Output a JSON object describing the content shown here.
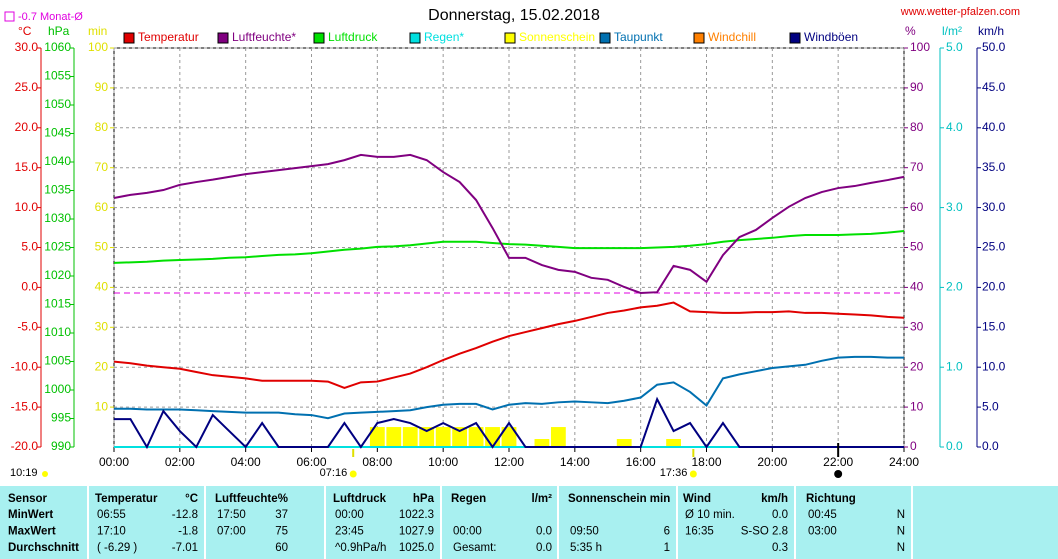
{
  "chart_data": {
    "type": "line",
    "title": "Donnerstag, 15.02.2018",
    "source": "www.wetter-pfalzen.com",
    "monthly_avg": {
      "value": -0.7,
      "label": "Monat-Ø",
      "color": "#e000e0",
      "axis": 0
    },
    "day_length": "10:19",
    "sun_markers": [
      {
        "label": "07:16",
        "x": 7.267
      },
      {
        "label": "17:36",
        "x": 17.6
      }
    ],
    "moon_x": 22,
    "grid": true,
    "xlim": [
      0,
      24
    ],
    "xticks": [
      {
        "value": 0,
        "label": "00:00"
      },
      {
        "value": 2,
        "label": "02:00"
      },
      {
        "value": 4,
        "label": "04:00"
      },
      {
        "value": 6,
        "label": "06:00"
      },
      {
        "value": 8,
        "label": "08:00"
      },
      {
        "value": 10,
        "label": "10:00"
      },
      {
        "value": 12,
        "label": "12:00"
      },
      {
        "value": 14,
        "label": "14:00"
      },
      {
        "value": 16,
        "label": "16:00"
      },
      {
        "value": 18,
        "label": "18:00"
      },
      {
        "value": 20,
        "label": "20:00"
      },
      {
        "value": 22,
        "label": "22:00"
      },
      {
        "value": 24,
        "label": "24:00"
      }
    ],
    "y_axes": [
      {
        "unit": "°C",
        "color": "#e00000",
        "lim": [
          -20,
          30
        ],
        "ticks": [
          {
            "value": 30,
            "label": "30.0"
          },
          {
            "value": 25,
            "label": "25.0"
          },
          {
            "value": 20,
            "label": "20.0"
          },
          {
            "value": 15,
            "label": "15.0"
          },
          {
            "value": 10,
            "label": "10.0"
          },
          {
            "value": 5,
            "label": "5.0"
          },
          {
            "value": 0,
            "label": "0.0"
          },
          {
            "value": -5,
            "label": "-5.0"
          },
          {
            "value": -10,
            "label": "-10.0"
          },
          {
            "value": -15,
            "label": "-15.0"
          },
          {
            "value": -20,
            "label": "-20.0"
          }
        ]
      },
      {
        "unit": "hPa",
        "color": "#00c000",
        "lim": [
          990,
          1060
        ],
        "ticks": [
          1060,
          1055,
          1050,
          1045,
          1040,
          1035,
          1030,
          1025,
          1020,
          1015,
          1010,
          1005,
          1000,
          995,
          990
        ]
      },
      {
        "unit": "min",
        "color": "#e0e000",
        "lim": [
          0,
          100
        ],
        "ticks": [
          100,
          90,
          80,
          70,
          60,
          50,
          40,
          30,
          20,
          10
        ]
      },
      {
        "unit": "%",
        "color": "#800080",
        "lim": [
          0,
          100
        ],
        "ticks": [
          100,
          90,
          80,
          70,
          60,
          50,
          40,
          30,
          20,
          10,
          0
        ]
      },
      {
        "unit": "l/m²",
        "color": "#00c0c0",
        "lim": [
          0,
          5
        ],
        "ticks": [
          {
            "value": 5,
            "label": "5.0"
          },
          {
            "value": 4,
            "label": "4.0"
          },
          {
            "value": 3,
            "label": "3.0"
          },
          {
            "value": 2,
            "label": "2.0"
          },
          {
            "value": 1,
            "label": "1.0"
          },
          {
            "value": 0,
            "label": "0.0"
          }
        ]
      },
      {
        "unit": "km/h",
        "color": "#000080",
        "lim": [
          0,
          50
        ],
        "ticks": [
          {
            "value": 50,
            "label": "50.0"
          },
          {
            "value": 45,
            "label": "45.0"
          },
          {
            "value": 40,
            "label": "40.0"
          },
          {
            "value": 35,
            "label": "35.0"
          },
          {
            "value": 30,
            "label": "30.0"
          },
          {
            "value": 25,
            "label": "25.0"
          },
          {
            "value": 20,
            "label": "20.0"
          },
          {
            "value": 15,
            "label": "15.0"
          },
          {
            "value": 10,
            "label": "10.0"
          },
          {
            "value": 5,
            "label": "5.0"
          },
          {
            "value": 0,
            "label": "0.0"
          }
        ]
      }
    ],
    "x": [
      0,
      0.5,
      1,
      1.5,
      2,
      2.5,
      3,
      3.5,
      4,
      4.5,
      5,
      5.5,
      6,
      6.5,
      7,
      7.5,
      8,
      8.5,
      9,
      9.5,
      10,
      10.5,
      11,
      11.5,
      12,
      12.5,
      13,
      13.5,
      14,
      14.5,
      15,
      15.5,
      16,
      16.5,
      17,
      17.5,
      18,
      18.5,
      19,
      19.5,
      20,
      20.5,
      21,
      21.5,
      22,
      22.5,
      23,
      23.5,
      24
    ],
    "series": [
      {
        "name": "Temperatur",
        "color": "#e00000",
        "axis": 0,
        "type": "line",
        "values": [
          -9.3,
          -9.5,
          -9.8,
          -10.0,
          -10.2,
          -10.6,
          -11.0,
          -11.2,
          -11.4,
          -11.7,
          -11.7,
          -11.7,
          -11.7,
          -11.8,
          -12.6,
          -11.9,
          -11.8,
          -11.3,
          -10.8,
          -10.0,
          -9.1,
          -8.3,
          -7.6,
          -6.8,
          -6.1,
          -5.6,
          -5.1,
          -4.6,
          -4.2,
          -3.7,
          -3.2,
          -2.9,
          -2.5,
          -2.3,
          -1.9,
          -3.0,
          -3.1,
          -3.2,
          -3.2,
          -3.1,
          -3.1,
          -3.0,
          -3.2,
          -3.2,
          -3.3,
          -3.4,
          -3.5,
          -3.7,
          -3.8
        ]
      },
      {
        "name": "Luftfeuchte*",
        "color": "#800080",
        "axis": 3,
        "type": "line",
        "values": [
          62.4,
          63.2,
          63.7,
          64.4,
          65.7,
          66.4,
          67.0,
          67.7,
          68.4,
          68.9,
          69.4,
          69.9,
          70.4,
          70.9,
          71.9,
          73.2,
          72.7,
          72.7,
          73.2,
          71.9,
          68.9,
          66.4,
          61.9,
          54.9,
          47.4,
          47.4,
          45.6,
          44.4,
          43.9,
          42.4,
          41.9,
          40.1,
          38.6,
          38.8,
          45.4,
          44.4,
          41.4,
          48.1,
          52.6,
          54.4,
          57.4,
          60.2,
          62.4,
          63.9,
          64.9,
          65.4,
          66.2,
          66.9,
          67.7
        ]
      },
      {
        "name": "Luftdruck",
        "color": "#00e000",
        "axis": 1,
        "type": "line",
        "values": [
          1022.3,
          1022.4,
          1022.5,
          1022.7,
          1022.8,
          1022.9,
          1023.0,
          1023.2,
          1023.3,
          1023.5,
          1023.7,
          1023.8,
          1024.0,
          1024.3,
          1024.6,
          1024.8,
          1025.1,
          1025.2,
          1025.4,
          1025.7,
          1026.0,
          1026.0,
          1026.0,
          1025.8,
          1025.6,
          1025.5,
          1025.3,
          1025.1,
          1024.9,
          1024.9,
          1024.9,
          1024.9,
          1024.9,
          1025.0,
          1025.1,
          1025.3,
          1025.6,
          1026.0,
          1026.3,
          1026.5,
          1026.7,
          1027.0,
          1027.2,
          1027.2,
          1027.2,
          1027.3,
          1027.4,
          1027.6,
          1027.9
        ]
      },
      {
        "name": "Regen*",
        "color": "#00e0e0",
        "axis": 4,
        "type": "line",
        "values": [
          0,
          0,
          0,
          0,
          0,
          0,
          0,
          0,
          0,
          0,
          0,
          0,
          0,
          0,
          0,
          0,
          0,
          0,
          0,
          0,
          0,
          0,
          0,
          0,
          0,
          0,
          0,
          0,
          0,
          0,
          0,
          0,
          0,
          0,
          0,
          0,
          0,
          0,
          0,
          0,
          0,
          0,
          0,
          0,
          0,
          0,
          0,
          0,
          0
        ]
      },
      {
        "name": "Sonnenschein",
        "color": "#ffff00",
        "axis": 2,
        "type": "bar",
        "values": [
          0,
          0,
          0,
          0,
          0,
          0,
          0,
          0,
          0,
          0,
          0,
          0,
          0,
          0,
          0,
          0,
          5,
          5,
          5,
          5,
          5,
          5,
          5,
          5,
          5,
          0,
          2,
          5,
          0,
          0,
          0,
          2,
          0,
          0,
          2,
          0,
          0,
          0,
          0,
          0,
          0,
          0,
          0,
          0,
          0,
          0,
          0,
          0,
          0
        ]
      },
      {
        "name": "Taupunkt",
        "color": "#0070b0",
        "axis": 0,
        "type": "line",
        "values": [
          -15.2,
          -15.2,
          -15.3,
          -15.3,
          -15.3,
          -15.4,
          -15.5,
          -15.6,
          -15.7,
          -15.7,
          -15.7,
          -15.9,
          -16.0,
          -16.4,
          -15.8,
          -15.7,
          -15.6,
          -15.5,
          -15.4,
          -15.0,
          -14.7,
          -14.6,
          -14.6,
          -15.3,
          -14.7,
          -14.5,
          -14.6,
          -14.4,
          -14.3,
          -14.4,
          -14.5,
          -14.2,
          -13.8,
          -12.2,
          -11.9,
          -13.1,
          -14.8,
          -11.4,
          -10.9,
          -10.5,
          -10.1,
          -9.9,
          -9.7,
          -9.2,
          -8.8,
          -8.7,
          -8.7,
          -8.8,
          -8.8
        ]
      },
      {
        "name": "Windchill",
        "color": "#ff8000",
        "axis": 0,
        "type": "line",
        "values": [
          null,
          null,
          null,
          null,
          null,
          null,
          null,
          null,
          null,
          null,
          null,
          null,
          null,
          null,
          null,
          null,
          null,
          null,
          null,
          null,
          null,
          null,
          null,
          null,
          null,
          null,
          null,
          null,
          null,
          null,
          null,
          null,
          null,
          null,
          null,
          null,
          null,
          null,
          null,
          null,
          null,
          null,
          null,
          null,
          null,
          null,
          null,
          null,
          null
        ]
      },
      {
        "name": "Windböen",
        "color": "#000080",
        "axis": 5,
        "type": "line",
        "values": [
          3.5,
          3.5,
          0,
          4.5,
          2,
          0,
          4,
          2,
          0,
          3,
          0,
          0,
          0,
          0,
          3,
          0,
          3,
          3.5,
          3,
          2,
          3,
          2,
          3,
          0,
          3,
          0,
          0,
          0,
          0,
          0,
          0,
          0,
          0,
          6,
          2,
          3,
          0,
          3,
          0,
          0,
          0,
          0,
          0,
          0,
          0,
          0,
          0,
          0,
          0
        ]
      }
    ]
  },
  "table": {
    "header": [
      "Sensor",
      "Temperatur",
      "°C",
      "Luftfeuchte",
      "%",
      "Luftdruck",
      "hPa",
      "Regen",
      "l/m²",
      "Sonnenschein min",
      null,
      "Wind",
      "km/h",
      "Richtung",
      null
    ],
    "rows": [
      [
        "MinWert",
        "06:55",
        "-12.8",
        "17:50",
        "37",
        "00:00",
        "1022.3",
        null,
        null,
        null,
        null,
        "Ø 10 min.",
        "0.0",
        "00:45",
        "N"
      ],
      [
        "MaxWert",
        "17:10",
        "-1.8",
        "07:00",
        "75",
        "23:45",
        "1027.9",
        "00:00",
        "0.0",
        "09:50",
        "6",
        "16:35",
        "S-SO 2.8",
        "03:00",
        "N"
      ],
      [
        "Durchschnitt",
        "( -6.29 )",
        "-7.01",
        null,
        "60",
        "^0.9hPa/h",
        "1025.0",
        "Gesamt:",
        "0.0",
        "5:35 h",
        "1",
        null,
        "0.3",
        null,
        "N"
      ]
    ]
  }
}
